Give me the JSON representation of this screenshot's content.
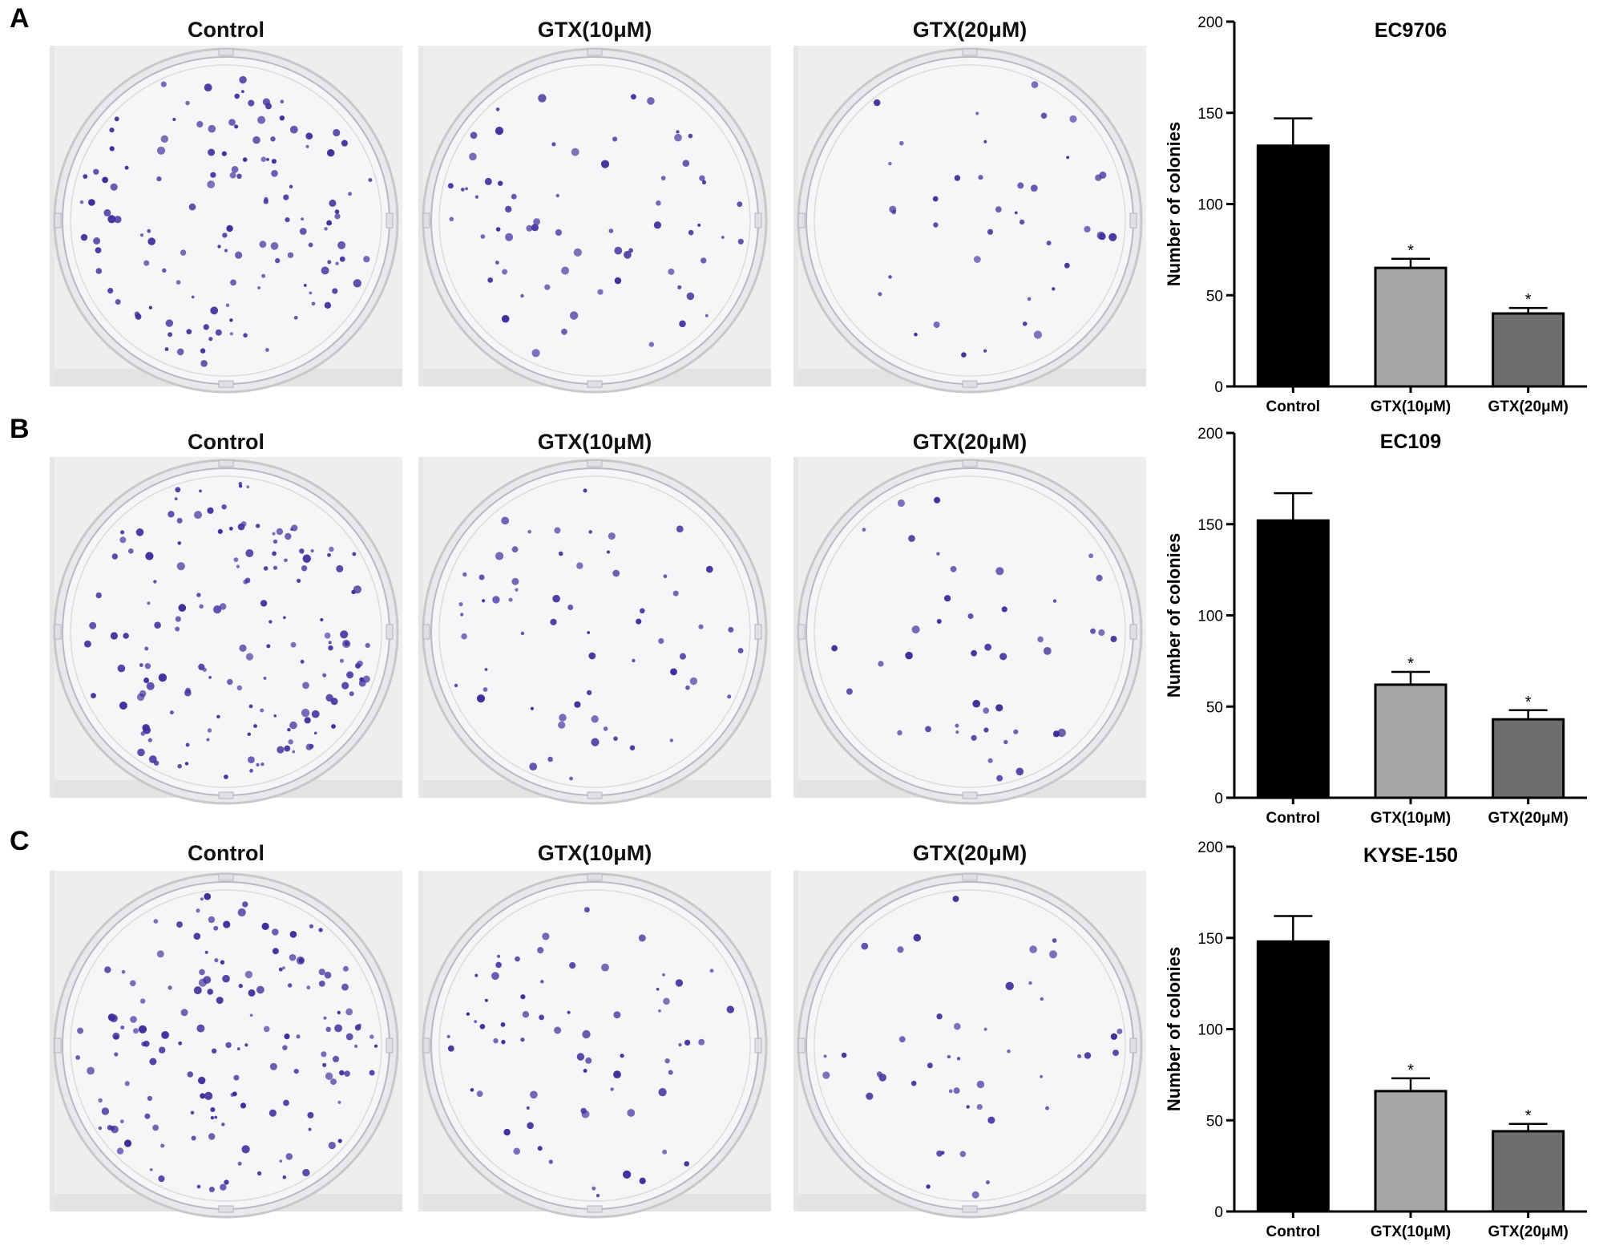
{
  "panels": [
    {
      "letter": "A",
      "plate_labels": [
        "Control",
        "GTX(10μM)",
        "GTX(20μM)"
      ],
      "colony_counts": [
        130,
        66,
        40
      ],
      "chart": {
        "type": "bar",
        "title": "EC9706",
        "ylabel": "Number of colonies",
        "categories": [
          "Control",
          "GTX(10μM)",
          "GTX(20μM)"
        ],
        "values": [
          132,
          65,
          40
        ],
        "errors": [
          15,
          5,
          3
        ],
        "significance": [
          "",
          "*",
          "*"
        ],
        "ylim": [
          0,
          200
        ],
        "yticks": [
          "0",
          "50",
          "100",
          "150",
          "200"
        ],
        "colors": [
          "#000000",
          "#a6a6a6",
          "#6e6e6e"
        ]
      }
    },
    {
      "letter": "B",
      "plate_labels": [
        "Control",
        "GTX(10μM)",
        "GTX(20μM)"
      ],
      "colony_counts": [
        150,
        62,
        43
      ],
      "chart": {
        "type": "bar",
        "title": "EC109",
        "ylabel": "Number of colonies",
        "categories": [
          "Control",
          "GTX(10μM)",
          "GTX(20μM)"
        ],
        "values": [
          152,
          62,
          43
        ],
        "errors": [
          15,
          7,
          5
        ],
        "significance": [
          "",
          "*",
          "*"
        ],
        "ylim": [
          0,
          200
        ],
        "yticks": [
          "0",
          "50",
          "100",
          "150",
          "200"
        ],
        "colors": [
          "#000000",
          "#a6a6a6",
          "#6e6e6e"
        ]
      }
    },
    {
      "letter": "C",
      "plate_labels": [
        "Control",
        "GTX(10μM)",
        "GTX(20μM)"
      ],
      "colony_counts": [
        148,
        66,
        44
      ],
      "chart": {
        "type": "bar",
        "title": "KYSE-150",
        "ylabel": "Number of colonies",
        "categories": [
          "Control",
          "GTX(10μM)",
          "GTX(20μM)"
        ],
        "values": [
          148,
          66,
          44
        ],
        "errors": [
          14,
          7,
          4
        ],
        "significance": [
          "",
          "*",
          "*"
        ],
        "ylim": [
          0,
          200
        ],
        "yticks": [
          "0",
          "50",
          "100",
          "150",
          "200"
        ],
        "colors": [
          "#000000",
          "#a6a6a6",
          "#6e6e6e"
        ]
      }
    }
  ],
  "chart_data": [
    {
      "type": "bar",
      "title": "EC9706",
      "ylabel": "Number of colonies",
      "categories": [
        "Control",
        "GTX(10μM)",
        "GTX(20μM)"
      ],
      "values": [
        132,
        65,
        40
      ],
      "errors": [
        15,
        5,
        3
      ],
      "ylim": [
        0,
        200
      ]
    },
    {
      "type": "bar",
      "title": "EC109",
      "ylabel": "Number of colonies",
      "categories": [
        "Control",
        "GTX(10μM)",
        "GTX(20μM)"
      ],
      "values": [
        152,
        62,
        43
      ],
      "errors": [
        15,
        7,
        5
      ],
      "ylim": [
        0,
        200
      ]
    },
    {
      "type": "bar",
      "title": "KYSE-150",
      "ylabel": "Number of colonies",
      "categories": [
        "Control",
        "GTX(10μM)",
        "GTX(20μM)"
      ],
      "values": [
        148,
        66,
        44
      ],
      "errors": [
        14,
        7,
        4
      ],
      "ylim": [
        0,
        200
      ]
    }
  ],
  "colors": {
    "colony": "#3f2e9c",
    "plate_bg": "#eeeeee",
    "dish_fill": "#f7f7f9",
    "dish_rim": "#bfbfc4"
  }
}
